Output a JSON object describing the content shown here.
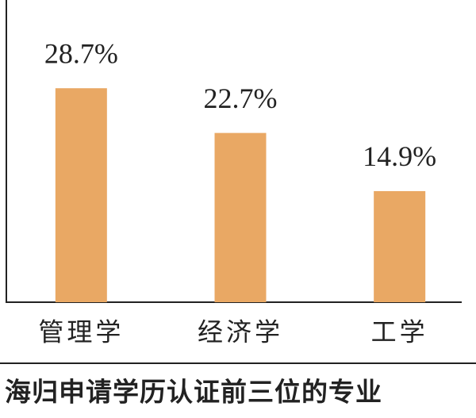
{
  "chart_data": {
    "type": "bar",
    "title": "海归申请学历认证前三位的专业",
    "categories": [
      "管理学",
      "经济学",
      "工学"
    ],
    "values": [
      28.7,
      22.7,
      14.9
    ],
    "value_labels": [
      "28.7%",
      "22.7%",
      "14.9%"
    ],
    "color": "#e9a864"
  }
}
